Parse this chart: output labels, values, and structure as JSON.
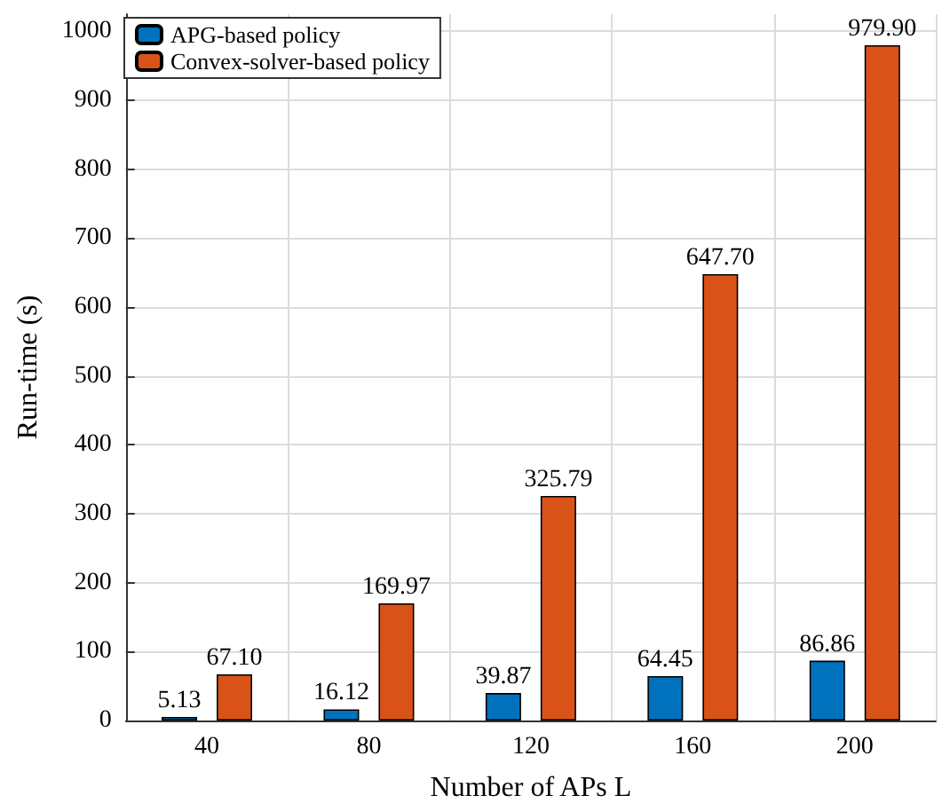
{
  "chart_data": {
    "type": "bar",
    "xlabel": "Number of APs L",
    "ylabel": "Run-time (s)",
    "categories": [
      "40",
      "80",
      "120",
      "160",
      "200"
    ],
    "series": [
      {
        "name": "APG-based policy",
        "color": "#0072bd",
        "values": [
          5.13,
          16.12,
          39.87,
          64.45,
          86.86
        ],
        "value_labels": [
          "5.13",
          "16.12",
          "39.87",
          "64.45",
          "86.86"
        ]
      },
      {
        "name": "Convex-solver-based policy",
        "color": "#d95319",
        "values": [
          67.1,
          169.97,
          325.79,
          647.7,
          979.9
        ],
        "value_labels": [
          "67.10",
          "169.97",
          "325.79",
          "647.70",
          "979.90"
        ]
      }
    ],
    "ylim": [
      0,
      1025
    ],
    "yticks": [
      0,
      100,
      200,
      300,
      400,
      500,
      600,
      700,
      800,
      900,
      1000
    ],
    "grid": true,
    "legend": "top left"
  }
}
